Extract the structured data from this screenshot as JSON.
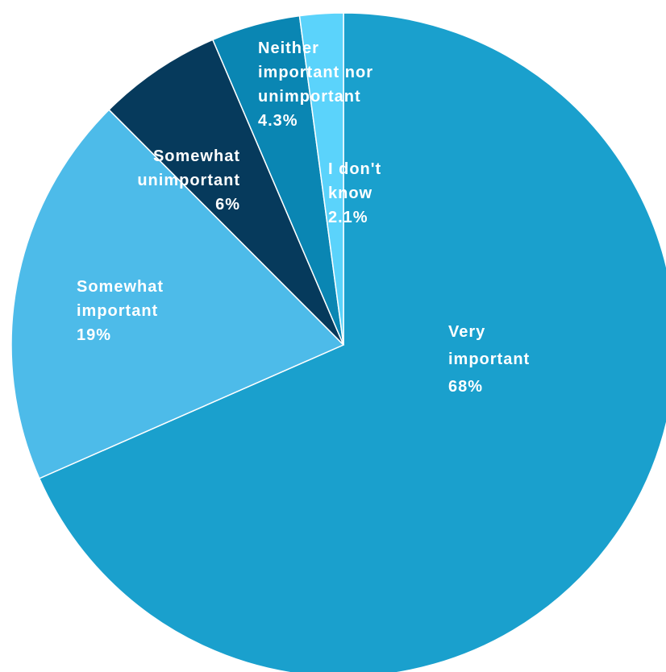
{
  "chart_data": {
    "type": "pie",
    "start_angle_deg": 0,
    "direction": "clockwise",
    "slices": [
      {
        "label": [
          "Very",
          "important"
        ],
        "value": 68,
        "display": "68%",
        "color": "#1aa0cd"
      },
      {
        "label": [
          "Somewhat",
          "important"
        ],
        "value": 19,
        "display": "19%",
        "color": "#4dbbe9"
      },
      {
        "label": [
          "Somewhat",
          "unimportant"
        ],
        "value": 6,
        "display": "6%",
        "color": "#063a5c"
      },
      {
        "label": [
          "Neither",
          "important nor",
          "unimportant"
        ],
        "value": 4.3,
        "display": "4.3%",
        "color": "#0a86b3"
      },
      {
        "label": [
          "I don't",
          "know"
        ],
        "value": 2.1,
        "display": "2.1%",
        "color": "#5bd3fb"
      }
    ]
  }
}
